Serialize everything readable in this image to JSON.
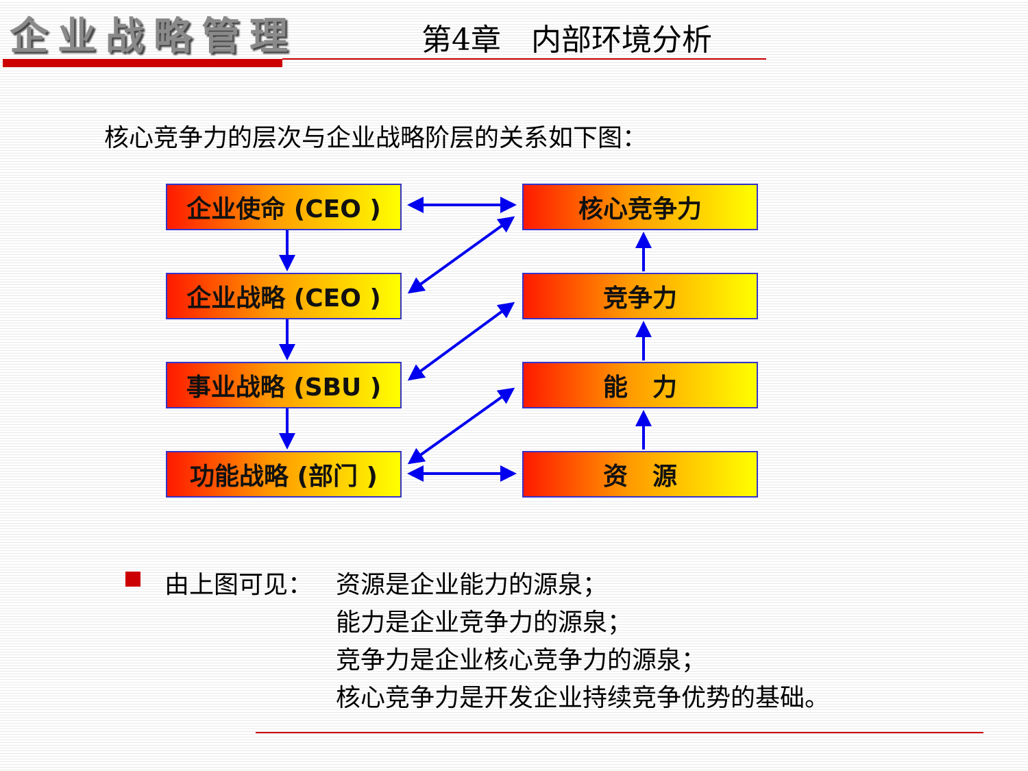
{
  "header": {
    "brand": "企业战略管理",
    "chapter": "第4章　内部环境分析"
  },
  "intro": "核心竞争力的层次与企业战略阶层的关系如下图：",
  "diagram": {
    "left": [
      "企业使命 (CEO )",
      "企业战略 (CEO )",
      "事业战略 (SBU )",
      "功能战略 (部门 )"
    ],
    "right": [
      "核心竞争力",
      "竞争力",
      "能　力",
      "资　源"
    ],
    "arrow_color": "#0000ee"
  },
  "conclusion": {
    "lead": "由上图可见：",
    "lines": [
      "资源是企业能力的源泉；",
      "能力是企业竞争力的源泉；",
      "竞争力是企业核心竞争力的源泉；",
      "核心竞争力是开发企业持续竞争优势的基础。"
    ]
  },
  "colors": {
    "accent": "#cc0000",
    "box_border": "#3333cc"
  }
}
